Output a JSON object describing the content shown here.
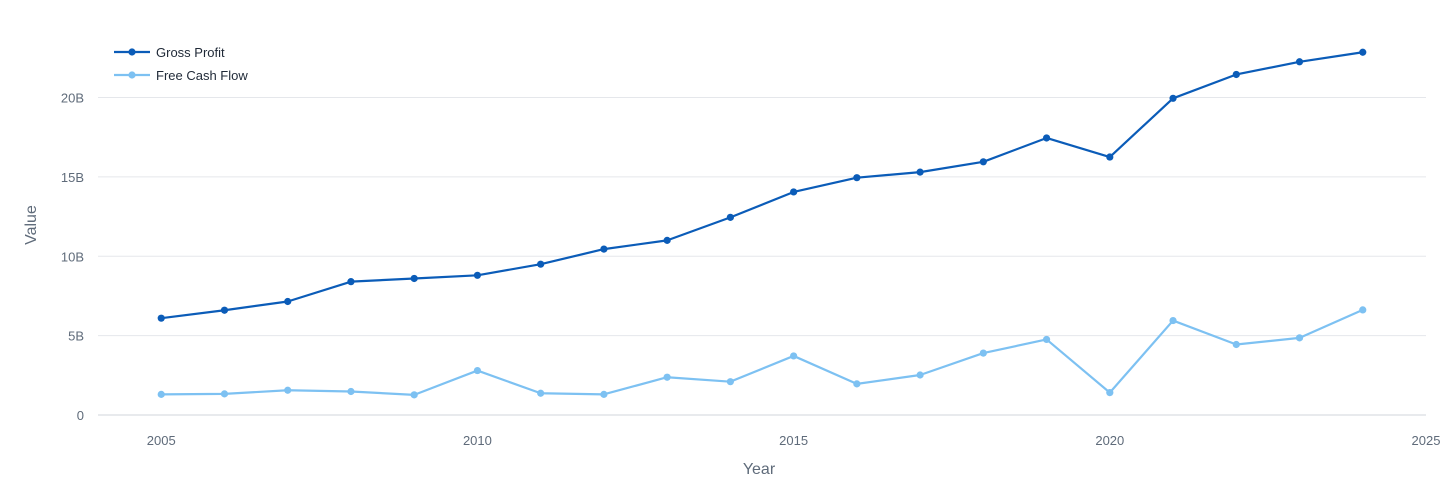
{
  "chart_data": {
    "type": "line",
    "title": "",
    "xlabel": "Year",
    "ylabel": "Value",
    "xlim": [
      2004,
      2025
    ],
    "ylim": [
      0,
      24000000000
    ],
    "x_ticks": [
      2005,
      2010,
      2015,
      2020,
      2025
    ],
    "x_tick_labels": [
      "2005",
      "2010",
      "2015",
      "2020",
      "2025"
    ],
    "y_ticks": [
      0,
      5000000000,
      10000000000,
      15000000000,
      20000000000
    ],
    "y_tick_labels": [
      "0",
      "5B",
      "10B",
      "15B",
      "20B"
    ],
    "grid": true,
    "legend_position": "top-left",
    "x": [
      2005,
      2006,
      2007,
      2008,
      2009,
      2010,
      2011,
      2012,
      2013,
      2014,
      2015,
      2016,
      2017,
      2018,
      2019,
      2020,
      2021,
      2022,
      2023,
      2024
    ],
    "series": [
      {
        "name": "Gross Profit",
        "color": "#0b5cb8",
        "values": [
          6100000000,
          6600000000,
          7150000000,
          8400000000,
          8600000000,
          8800000000,
          9500000000,
          10450000000,
          11000000000,
          12450000000,
          14050000000,
          14950000000,
          15300000000,
          15950000000,
          17450000000,
          16250000000,
          19950000000,
          21450000000,
          22250000000,
          22850000000
        ]
      },
      {
        "name": "Free Cash Flow",
        "color": "#7dc1f2",
        "values": [
          1300000000,
          1330000000,
          1560000000,
          1480000000,
          1270000000,
          2800000000,
          1370000000,
          1300000000,
          2380000000,
          2100000000,
          3720000000,
          1960000000,
          2520000000,
          3900000000,
          4760000000,
          1410000000,
          5950000000,
          4440000000,
          4860000000,
          6620000000
        ]
      }
    ]
  }
}
